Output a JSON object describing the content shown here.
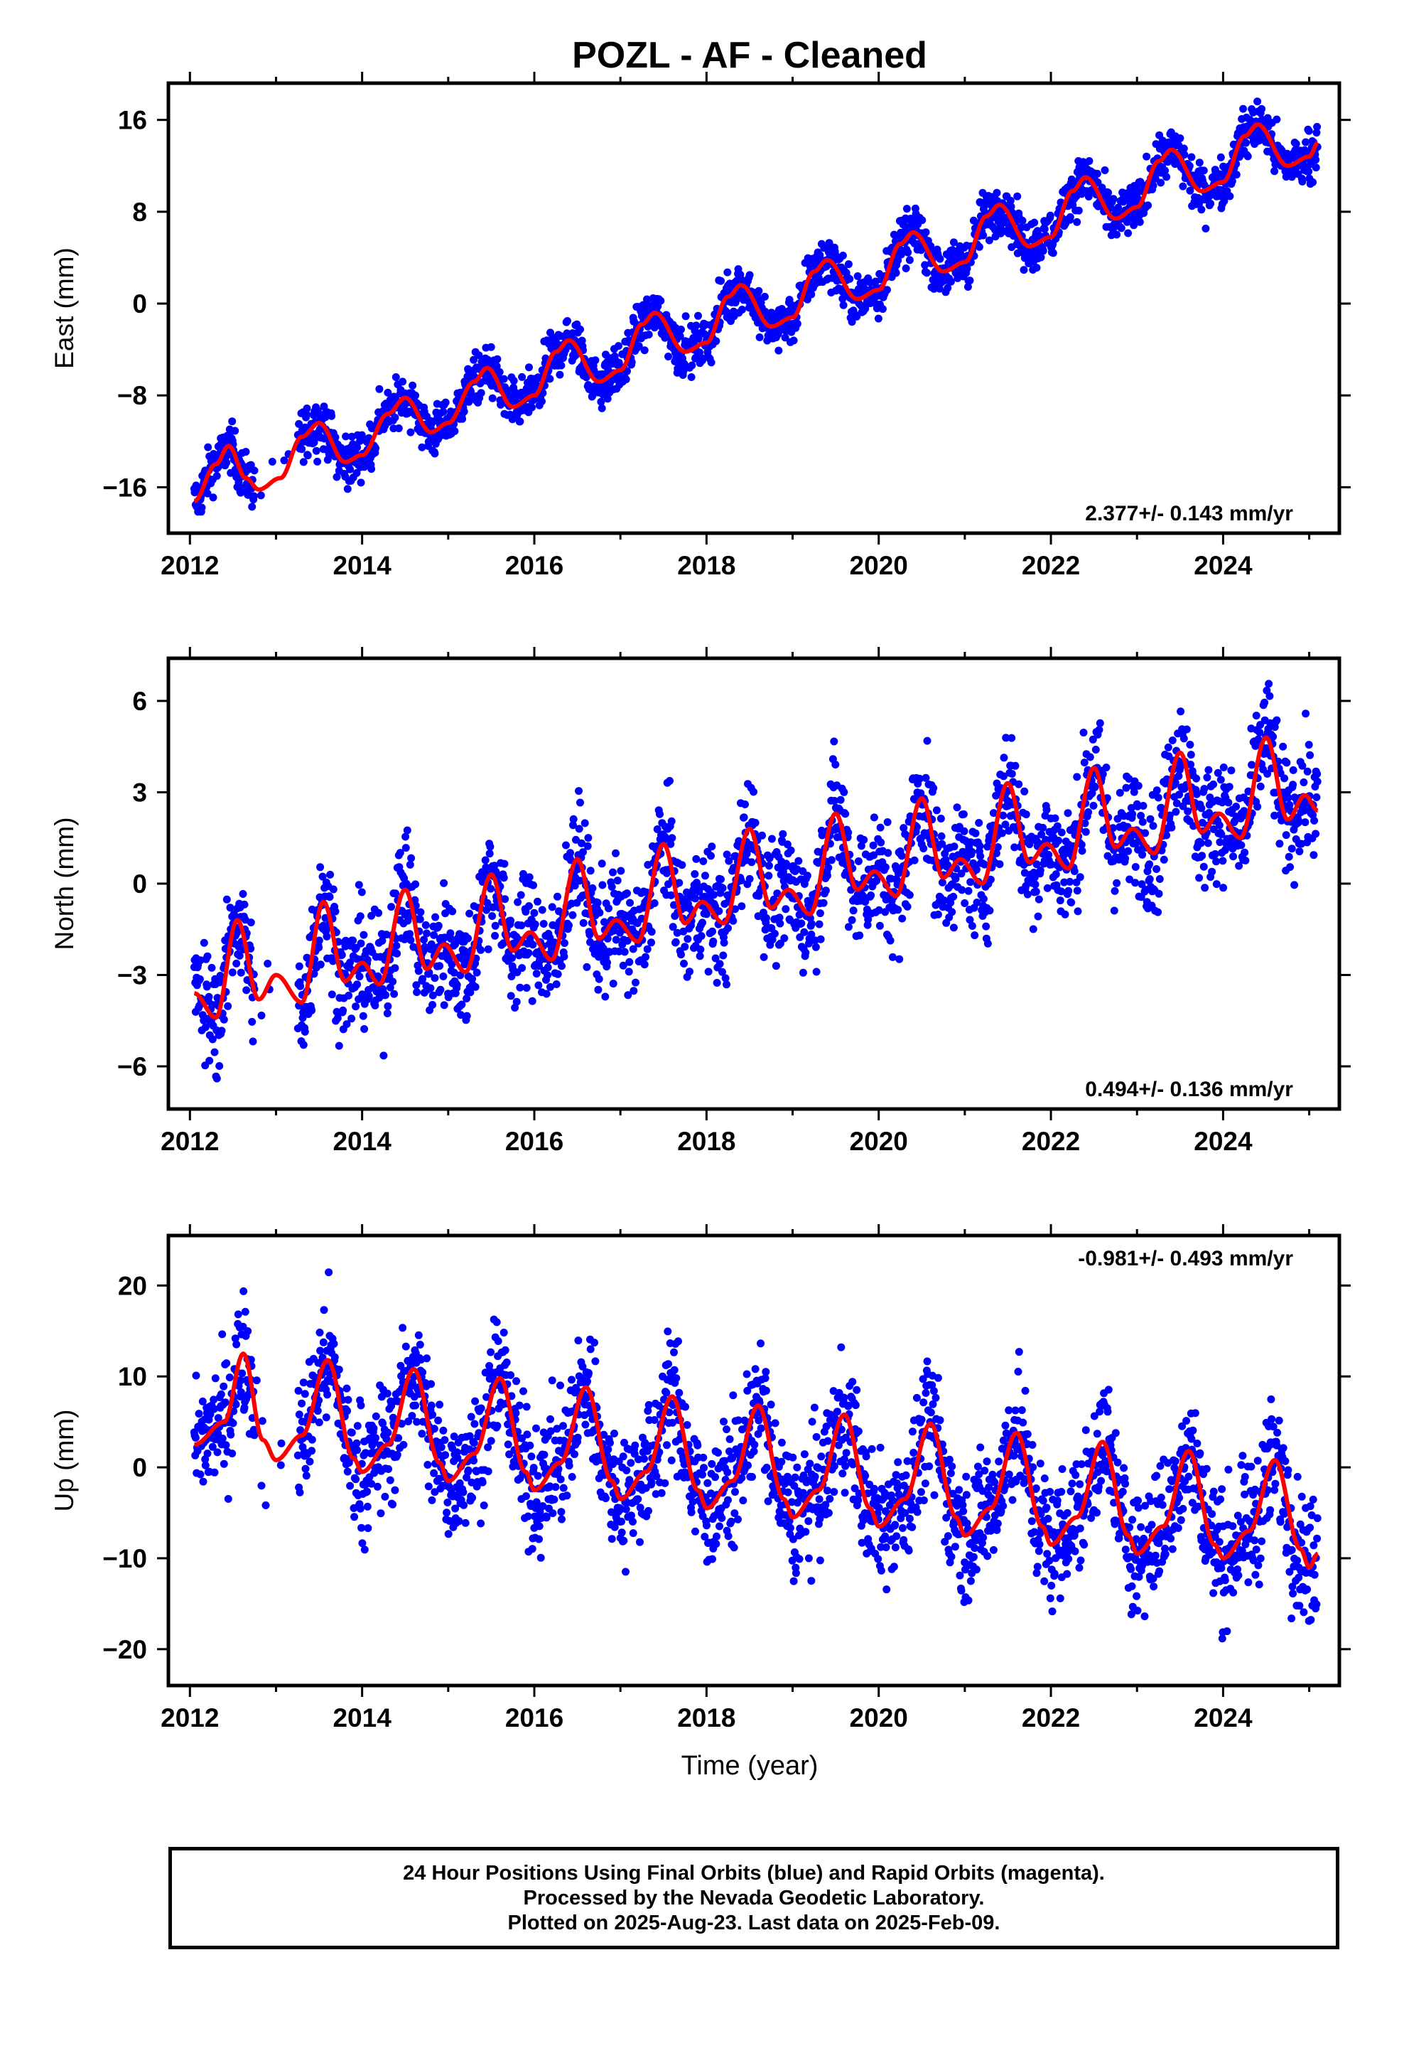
{
  "title": "POZL  - AF - Cleaned",
  "xlabel": "Time (year)",
  "footer": {
    "line1": "24 Hour Positions Using Final Orbits (blue) and Rapid Orbits (magenta).",
    "line2": "Processed by the Nevada Geodetic Laboratory.",
    "line3": "Plotted on 2025-Aug-23. Last data on 2025-Feb-09."
  },
  "colors": {
    "observations": "#0000ff",
    "model": "#ff0000",
    "frame": "#000000"
  },
  "chart_data": [
    {
      "type": "scatter",
      "component": "East",
      "ylabel": "East (mm)",
      "rate_label": "2.377+/- 0.143 mm/yr",
      "rate_mm_per_yr": 2.377,
      "rate_sigma": 0.143,
      "rate_label_position": "bottom-right",
      "xlim": [
        2011.75,
        2025.35
      ],
      "ylim": [
        -20,
        19.2
      ],
      "xticks": [
        2012,
        2014,
        2016,
        2018,
        2020,
        2022,
        2024
      ],
      "yticks": [
        -16,
        -8,
        0,
        8,
        16
      ],
      "ytick_labels": [
        "−16",
        "−8",
        "0",
        "8",
        "16"
      ],
      "model": {
        "x": [
          2012.05,
          2012.3,
          2012.45,
          2012.65,
          2012.8,
          2013.05,
          2013.3,
          2013.5,
          2013.8,
          2014.0,
          2014.3,
          2014.5,
          2014.8,
          2015.0,
          2015.3,
          2015.45,
          2015.75,
          2016.0,
          2016.25,
          2016.4,
          2016.75,
          2017.0,
          2017.25,
          2017.4,
          2017.75,
          2018.0,
          2018.25,
          2018.4,
          2018.75,
          2019.0,
          2019.25,
          2019.4,
          2019.75,
          2020.0,
          2020.25,
          2020.4,
          2020.75,
          2021.0,
          2021.25,
          2021.4,
          2021.75,
          2022.0,
          2022.25,
          2022.4,
          2022.75,
          2023.0,
          2023.25,
          2023.4,
          2023.75,
          2024.0,
          2024.25,
          2024.4,
          2024.75,
          2025.0,
          2025.1
        ],
        "y": [
          -17.2,
          -14.0,
          -12.4,
          -15.2,
          -16.2,
          -15.2,
          -11.6,
          -10.4,
          -13.8,
          -13.2,
          -9.6,
          -8.2,
          -11.2,
          -10.4,
          -6.8,
          -5.6,
          -9.0,
          -8.0,
          -4.2,
          -3.2,
          -6.8,
          -5.8,
          -1.8,
          -0.8,
          -4.2,
          -3.4,
          0.6,
          1.6,
          -2.0,
          -1.2,
          2.8,
          3.8,
          0.4,
          1.2,
          5.2,
          6.2,
          2.8,
          3.6,
          7.6,
          8.6,
          5.0,
          5.8,
          9.8,
          11.0,
          7.4,
          8.4,
          12.4,
          13.4,
          9.8,
          10.6,
          14.6,
          15.6,
          12.0,
          12.8,
          14.0
        ]
      }
    },
    {
      "type": "scatter",
      "component": "North",
      "ylabel": "North (mm)",
      "rate_label": "0.494+/- 0.136 mm/yr",
      "rate_mm_per_yr": 0.494,
      "rate_sigma": 0.136,
      "rate_label_position": "bottom-right",
      "xlim": [
        2011.75,
        2025.35
      ],
      "ylim": [
        -7.4,
        7.4
      ],
      "xticks": [
        2012,
        2014,
        2016,
        2018,
        2020,
        2022,
        2024
      ],
      "yticks": [
        -6,
        -3,
        0,
        3,
        6
      ],
      "ytick_labels": [
        "−6",
        "−3",
        "0",
        "3",
        "6"
      ],
      "model": {
        "x": [
          2012.05,
          2012.3,
          2012.55,
          2012.8,
          2013.0,
          2013.3,
          2013.55,
          2013.8,
          2014.0,
          2014.2,
          2014.5,
          2014.75,
          2014.95,
          2015.2,
          2015.5,
          2015.75,
          2015.95,
          2016.2,
          2016.5,
          2016.75,
          2016.95,
          2017.2,
          2017.5,
          2017.75,
          2017.95,
          2018.2,
          2018.5,
          2018.75,
          2018.95,
          2019.2,
          2019.5,
          2019.75,
          2019.95,
          2020.2,
          2020.5,
          2020.75,
          2020.95,
          2021.2,
          2021.5,
          2021.75,
          2021.95,
          2022.2,
          2022.5,
          2022.75,
          2022.95,
          2023.2,
          2023.5,
          2023.75,
          2023.95,
          2024.2,
          2024.5,
          2024.75,
          2024.95,
          2025.1
        ],
        "y": [
          -3.6,
          -4.4,
          -1.2,
          -3.8,
          -3.0,
          -3.9,
          -0.6,
          -3.2,
          -2.6,
          -3.3,
          -0.2,
          -2.8,
          -2.0,
          -2.9,
          0.3,
          -2.2,
          -1.6,
          -2.5,
          0.8,
          -1.8,
          -1.2,
          -1.9,
          1.3,
          -1.3,
          -0.6,
          -1.3,
          1.8,
          -0.8,
          -0.2,
          -1.0,
          2.3,
          -0.2,
          0.4,
          -0.4,
          2.8,
          0.2,
          0.8,
          0.0,
          3.3,
          0.7,
          1.3,
          0.5,
          3.8,
          1.2,
          1.8,
          1.0,
          4.3,
          1.7,
          2.3,
          1.5,
          4.8,
          2.1,
          2.9,
          2.4
        ]
      }
    },
    {
      "type": "scatter",
      "component": "Up",
      "ylabel": "Up (mm)",
      "rate_label": "-0.981+/- 0.493 mm/yr",
      "rate_mm_per_yr": -0.981,
      "rate_sigma": 0.493,
      "rate_label_position": "top-right",
      "xlim": [
        2011.75,
        2025.35
      ],
      "ylim": [
        -24,
        25.5
      ],
      "xticks": [
        2012,
        2014,
        2016,
        2018,
        2020,
        2022,
        2024
      ],
      "yticks": [
        -20,
        -10,
        0,
        10,
        20
      ],
      "ytick_labels": [
        "−20",
        "−10",
        "0",
        "10",
        "20"
      ],
      "model": {
        "x": [
          2012.05,
          2012.4,
          2012.62,
          2012.85,
          2013.0,
          2013.3,
          2013.6,
          2013.9,
          2014.0,
          2014.3,
          2014.6,
          2014.9,
          2015.0,
          2015.3,
          2015.6,
          2015.9,
          2016.0,
          2016.3,
          2016.6,
          2016.9,
          2017.0,
          2017.3,
          2017.6,
          2017.9,
          2018.0,
          2018.3,
          2018.6,
          2018.9,
          2019.0,
          2019.3,
          2019.6,
          2019.9,
          2020.0,
          2020.3,
          2020.6,
          2020.9,
          2021.0,
          2021.3,
          2021.6,
          2021.9,
          2022.0,
          2022.3,
          2022.6,
          2022.9,
          2023.0,
          2023.3,
          2023.6,
          2023.9,
          2024.0,
          2024.3,
          2024.6,
          2024.9,
          2025.0,
          2025.1
        ],
        "y": [
          2.5,
          5.0,
          12.5,
          3.0,
          0.8,
          3.5,
          11.8,
          1.0,
          -0.5,
          2.5,
          10.8,
          0.5,
          -1.5,
          1.5,
          9.8,
          -0.5,
          -2.5,
          0.5,
          8.8,
          -1.5,
          -3.5,
          -0.5,
          7.8,
          -2.5,
          -4.5,
          -1.5,
          6.8,
          -3.5,
          -5.5,
          -2.5,
          5.8,
          -4.5,
          -6.5,
          -3.5,
          4.8,
          -5.5,
          -7.5,
          -4.5,
          3.8,
          -6.5,
          -8.5,
          -5.5,
          2.8,
          -7.5,
          -9.5,
          -6.5,
          1.8,
          -8.5,
          -10.0,
          -7.0,
          0.8,
          -9.0,
          -11.0,
          -9.5
        ]
      }
    }
  ]
}
